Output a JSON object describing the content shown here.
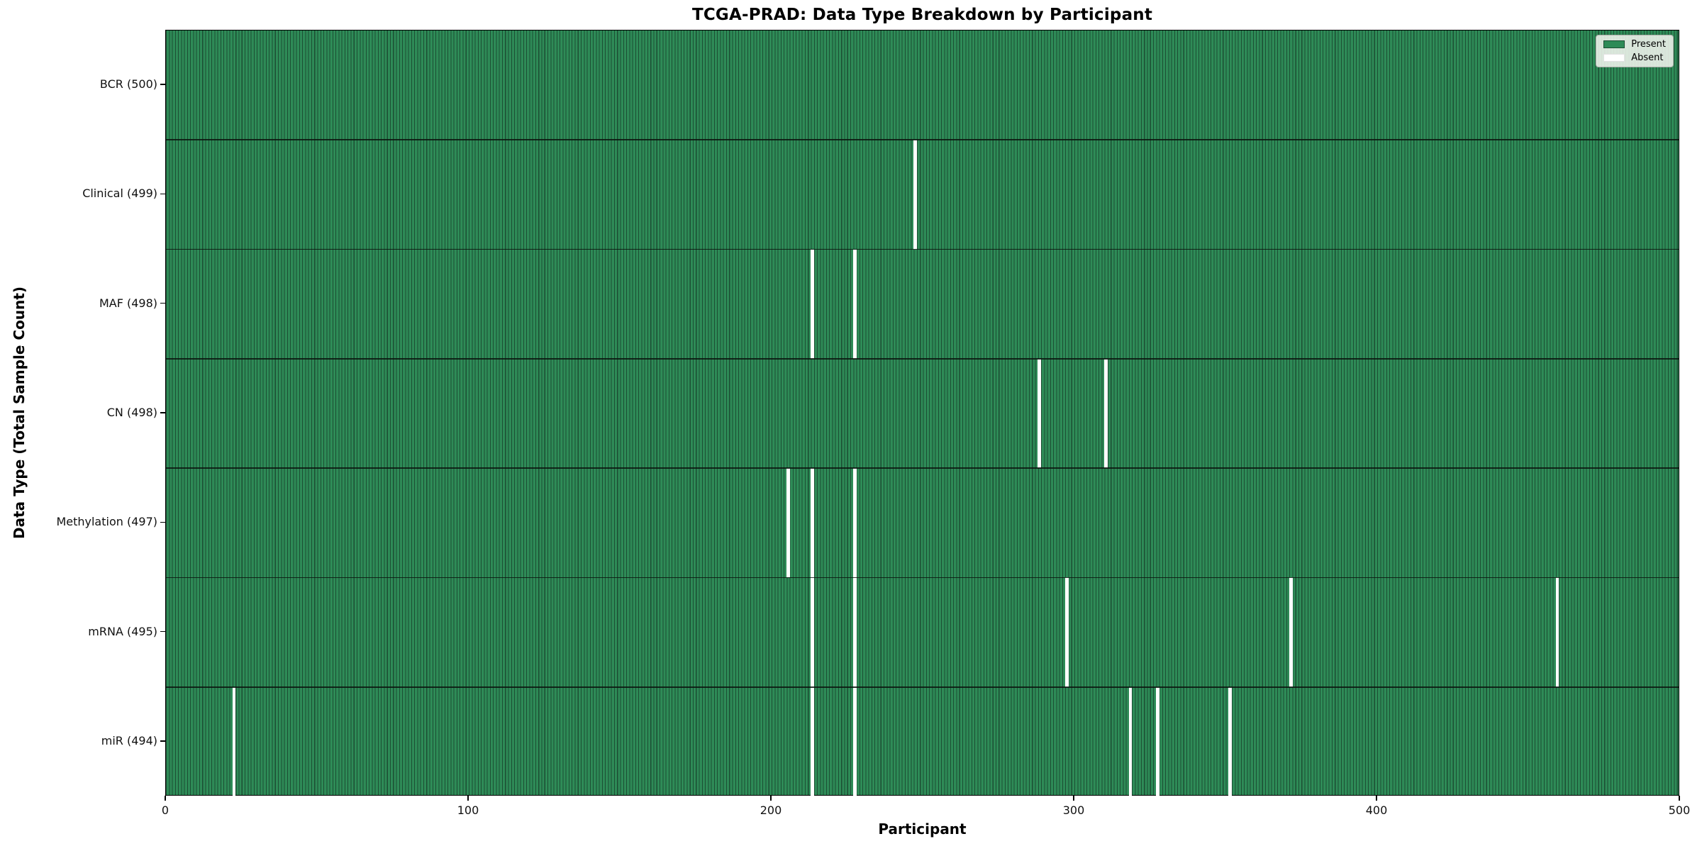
{
  "title": "TCGA-PRAD: Data Type Breakdown by Participant",
  "chart_data": {
    "type": "heatmap",
    "title": "TCGA-PRAD: Data Type Breakdown by Participant",
    "xlabel": "Participant",
    "ylabel": "Data Type (Total Sample Count)",
    "x_ticks": [
      0,
      100,
      200,
      300,
      400,
      500
    ],
    "x_range": [
      0,
      500
    ],
    "n_participants": 500,
    "grid": false,
    "legend": {
      "position": "upper right",
      "entries": [
        {
          "label": "Present",
          "color": "#2e8b57"
        },
        {
          "label": "Absent",
          "color": "#ffffff"
        }
      ]
    },
    "colors": {
      "present_fill": "#2e8b57",
      "bar_edge": "#1c4e33",
      "absent_fill": "#ffffff",
      "row_boundary": "#0a140e"
    },
    "rows": [
      {
        "label": "BCR (500)",
        "data_type": "BCR",
        "total": 500,
        "absent_participants": []
      },
      {
        "label": "Clinical (499)",
        "data_type": "Clinical",
        "total": 499,
        "absent_participants": [
          247
        ]
      },
      {
        "label": "MAF (498)",
        "data_type": "MAF",
        "total": 498,
        "absent_participants": [
          213,
          227
        ]
      },
      {
        "label": "CN (498)",
        "data_type": "CN",
        "total": 498,
        "absent_participants": [
          288,
          310
        ]
      },
      {
        "label": "Methylation (497)",
        "data_type": "Methylation",
        "total": 497,
        "absent_participants": [
          205,
          213,
          227
        ]
      },
      {
        "label": "mRNA (495)",
        "data_type": "mRNA",
        "total": 495,
        "absent_participants": [
          213,
          227,
          297,
          371,
          459
        ]
      },
      {
        "label": "miR (494)",
        "data_type": "miR",
        "total": 494,
        "absent_participants": [
          22,
          213,
          227,
          318,
          327,
          351
        ]
      }
    ]
  }
}
